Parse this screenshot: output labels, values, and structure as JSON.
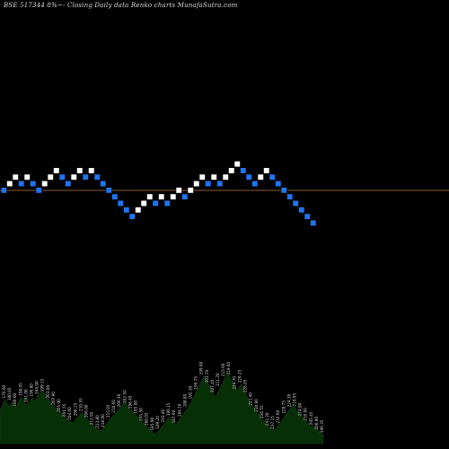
{
  "chart_data": {
    "type": "renko",
    "title": "BSE 517344  8%~- Closing Daily data  Renko  charts MunafaSutra.com",
    "colors": {
      "background": "#000000",
      "brick_up": "#ffffff",
      "brick_down": "#1f74f0",
      "reference_line": "#8a5a2a",
      "volume_fill": "#062f06",
      "volume_line": "#2a2a2a",
      "label_text": "#d0d0d0"
    },
    "bricks": [
      {
        "dir": "down",
        "price": 219.0
      },
      {
        "dir": "up",
        "price": 220.0
      },
      {
        "dir": "up",
        "price": 221.0
      },
      {
        "dir": "down",
        "price": 220.0
      },
      {
        "dir": "up",
        "price": 221.0
      },
      {
        "dir": "down",
        "price": 220.0
      },
      {
        "dir": "down",
        "price": 219.0
      },
      {
        "dir": "up",
        "price": 220.0
      },
      {
        "dir": "up",
        "price": 221.0
      },
      {
        "dir": "up",
        "price": 222.0
      },
      {
        "dir": "down",
        "price": 221.0
      },
      {
        "dir": "down",
        "price": 220.0
      },
      {
        "dir": "up",
        "price": 221.0
      },
      {
        "dir": "up",
        "price": 222.0
      },
      {
        "dir": "down",
        "price": 221.0
      },
      {
        "dir": "up",
        "price": 222.0
      },
      {
        "dir": "down",
        "price": 221.0
      },
      {
        "dir": "down",
        "price": 220.0
      },
      {
        "dir": "down",
        "price": 219.0
      },
      {
        "dir": "down",
        "price": 218.0
      },
      {
        "dir": "down",
        "price": 217.0
      },
      {
        "dir": "down",
        "price": 216.0
      },
      {
        "dir": "down",
        "price": 215.0
      },
      {
        "dir": "up",
        "price": 216.0
      },
      {
        "dir": "up",
        "price": 217.0
      },
      {
        "dir": "up",
        "price": 218.0
      },
      {
        "dir": "down",
        "price": 217.0
      },
      {
        "dir": "up",
        "price": 218.0
      },
      {
        "dir": "down",
        "price": 217.0
      },
      {
        "dir": "up",
        "price": 218.0
      },
      {
        "dir": "up",
        "price": 219.0
      },
      {
        "dir": "down",
        "price": 218.0
      },
      {
        "dir": "up",
        "price": 219.0
      },
      {
        "dir": "up",
        "price": 220.0
      },
      {
        "dir": "up",
        "price": 221.0
      },
      {
        "dir": "down",
        "price": 220.0
      },
      {
        "dir": "up",
        "price": 221.0
      },
      {
        "dir": "down",
        "price": 220.0
      },
      {
        "dir": "up",
        "price": 221.0
      },
      {
        "dir": "up",
        "price": 222.0
      },
      {
        "dir": "up",
        "price": 223.0
      },
      {
        "dir": "down",
        "price": 222.0
      },
      {
        "dir": "down",
        "price": 221.0
      },
      {
        "dir": "down",
        "price": 220.0
      },
      {
        "dir": "up",
        "price": 221.0
      },
      {
        "dir": "up",
        "price": 222.0
      },
      {
        "dir": "down",
        "price": 221.0
      },
      {
        "dir": "down",
        "price": 220.0
      },
      {
        "dir": "down",
        "price": 219.0
      },
      {
        "dir": "down",
        "price": 218.0
      },
      {
        "dir": "down",
        "price": 217.0
      },
      {
        "dir": "down",
        "price": 216.0
      },
      {
        "dir": "down",
        "price": 215.0
      },
      {
        "dir": "down",
        "price": 214.0
      }
    ],
    "reference_price": 219.5,
    "volume_area": [
      42,
      48,
      55,
      50,
      46,
      52,
      49,
      45,
      53,
      58,
      55,
      48,
      50,
      54,
      57,
      52,
      60,
      62,
      66,
      63,
      58,
      55,
      50,
      47,
      44,
      41,
      38,
      35,
      32,
      30,
      28,
      26,
      29,
      33,
      36,
      39,
      35,
      31,
      28,
      25,
      22,
      20,
      18,
      16,
      19,
      23,
      27,
      31,
      34,
      37,
      40,
      44,
      48,
      52,
      49,
      45,
      42,
      39,
      36,
      33,
      30,
      27,
      24,
      21,
      18,
      15,
      12,
      14,
      17,
      21,
      25,
      29,
      33,
      30,
      27,
      24,
      28,
      32,
      36,
      40,
      44,
      49,
      54,
      60,
      66,
      72,
      78,
      84,
      80,
      74,
      68,
      62,
      58,
      64,
      70,
      76,
      82,
      88,
      84,
      78,
      72,
      66,
      70,
      74,
      68,
      62,
      56,
      50,
      46,
      42,
      38,
      34,
      30,
      27,
      24,
      21,
      19,
      17,
      20,
      24,
      28,
      32,
      36,
      40,
      44,
      48,
      45,
      41,
      37,
      33,
      30,
      27,
      24,
      22,
      20,
      18,
      16,
      14,
      12
    ],
    "volume_labels": [
      "176.60",
      "180.85",
      "186.00",
      "198.05",
      "201.00",
      "196.80",
      "194.00",
      "199.15",
      "203.00",
      "207.90",
      "205.00",
      "201.55",
      "204.60",
      "208.25",
      "210.35",
      "206.00",
      "211.95",
      "213.80",
      "218.00",
      "215.05",
      "210.60",
      "206.30",
      "202.50",
      "198.45",
      "195.00",
      "191.50",
      "188.05",
      "185.90",
      "189.20",
      "193.40",
      "190.15",
      "187.60",
      "184.10",
      "188.80",
      "192.30",
      "196.75",
      "199.00",
      "203.70",
      "207.45",
      "211.20",
      "215.60",
      "219.85",
      "224.70",
      "229.25",
      "226.05",
      "221.40",
      "230.80",
      "236.55",
      "241.20",
      "237.15",
      "232.60",
      "228.75",
      "224.30",
      "219.95",
      "214.80",
      "210.00",
      "205.45",
      "200.80",
      "196.35"
    ]
  }
}
